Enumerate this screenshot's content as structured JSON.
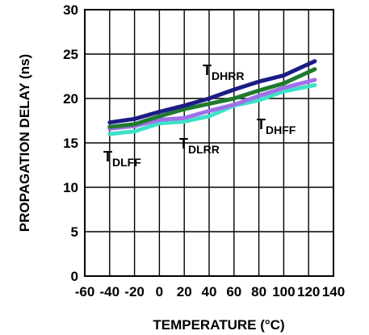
{
  "chart_data": {
    "type": "line",
    "title": "",
    "xlabel": "TEMPERATURE (°C)",
    "ylabel": "PROPAGATION DELAY (ns)",
    "xlim": [
      -60,
      140
    ],
    "ylim": [
      0,
      30
    ],
    "x_ticks": [
      -60,
      -40,
      -20,
      0,
      20,
      40,
      60,
      80,
      100,
      120,
      140
    ],
    "y_ticks": [
      0,
      5,
      10,
      15,
      20,
      25,
      30
    ],
    "x_tick_labels": [
      "-60",
      "-40",
      "-20",
      "0",
      "20",
      "40",
      "60",
      "80",
      "100",
      "120",
      "140"
    ],
    "y_tick_labels": [
      "0",
      "5",
      "10",
      "15",
      "20",
      "25",
      "30"
    ],
    "grid": true,
    "legend": "none",
    "series": [
      {
        "name": "DLFF",
        "label_main": "T",
        "label_sub": "DLFF",
        "color": "#40e0c8",
        "x": [
          -40,
          -20,
          0,
          20,
          40,
          60,
          80,
          100,
          125
        ],
        "y": [
          16.0,
          16.3,
          17.2,
          17.4,
          18.0,
          19.2,
          19.8,
          20.8,
          21.5
        ]
      },
      {
        "name": "DLRR",
        "label_main": "T",
        "label_sub": "DLRR",
        "color": "#a070e8",
        "x": [
          -40,
          -20,
          0,
          20,
          40,
          60,
          80,
          100,
          125
        ],
        "y": [
          16.6,
          16.9,
          17.6,
          17.8,
          18.6,
          19.3,
          20.3,
          21.2,
          22.1
        ]
      },
      {
        "name": "DHFF",
        "label_main": "T",
        "label_sub": "DHFF",
        "color": "#1f7a2e",
        "x": [
          -40,
          -20,
          0,
          20,
          40,
          60,
          80,
          100,
          125
        ],
        "y": [
          16.8,
          17.1,
          18.0,
          18.8,
          19.4,
          20.0,
          20.9,
          21.7,
          23.3
        ]
      },
      {
        "name": "DHRR",
        "label_main": "T",
        "label_sub": "DHRR",
        "color": "#1c1c86",
        "x": [
          -40,
          -20,
          0,
          20,
          40,
          60,
          80,
          100,
          125
        ],
        "y": [
          17.3,
          17.7,
          18.5,
          19.2,
          20.0,
          21.0,
          21.9,
          22.6,
          24.2
        ]
      }
    ]
  }
}
